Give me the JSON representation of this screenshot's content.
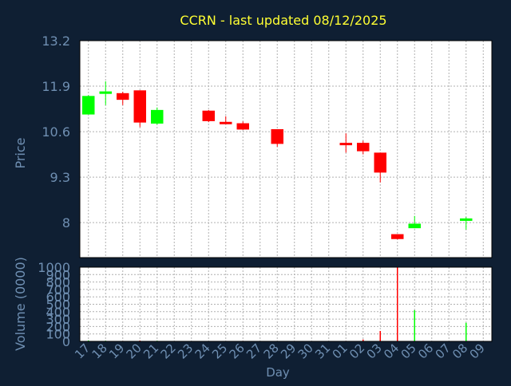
{
  "colors": {
    "background": "#0f1f33",
    "plot_background": "#ffffff",
    "title": "#ffff33",
    "axis_text": "#6f8fb2",
    "up": "#00ff00",
    "down": "#ff0000",
    "grid": "#b0b0b0"
  },
  "chart_data": [
    {
      "type": "candlestick",
      "title": "CCRN - last updated 08/12/2025",
      "xlabel": "",
      "ylabel": "Price",
      "ylim": [
        7.0,
        13.2
      ],
      "yticks": [
        13.2,
        11.9,
        10.6,
        9.3,
        8
      ],
      "ytick_labels": [
        "13.2",
        "11.9",
        "10.6",
        "9.3",
        "8"
      ],
      "grid": true,
      "categories": [
        "17",
        "18",
        "19",
        "20",
        "21",
        "22",
        "23",
        "24",
        "25",
        "26",
        "27",
        "28",
        "29",
        "30",
        "31",
        "01",
        "02",
        "03",
        "04",
        "05",
        "06",
        "07",
        "08",
        "09"
      ],
      "candles": [
        {
          "day": "17",
          "open": 11.09,
          "high": 11.64,
          "low": 11.09,
          "close": 11.62
        },
        {
          "day": "18",
          "open": 11.68,
          "high": 12.04,
          "low": 11.36,
          "close": 11.75
        },
        {
          "day": "19",
          "open": 11.7,
          "high": 11.74,
          "low": 11.36,
          "close": 11.51
        },
        {
          "day": "20",
          "open": 11.78,
          "high": 11.78,
          "low": 10.73,
          "close": 10.86
        },
        {
          "day": "21",
          "open": 10.83,
          "high": 11.29,
          "low": 10.8,
          "close": 11.22
        },
        {
          "day": "24",
          "open": 11.2,
          "high": 11.22,
          "low": 10.87,
          "close": 10.9
        },
        {
          "day": "25",
          "open": 10.88,
          "high": 11.04,
          "low": 10.84,
          "close": 10.86
        },
        {
          "day": "26",
          "open": 10.84,
          "high": 10.89,
          "low": 10.65,
          "close": 10.66
        },
        {
          "day": "28",
          "open": 10.67,
          "high": 10.67,
          "low": 10.17,
          "close": 10.25
        },
        {
          "day": "01",
          "open": 10.28,
          "high": 10.55,
          "low": 10.0,
          "close": 10.22
        },
        {
          "day": "02",
          "open": 10.28,
          "high": 10.34,
          "low": 9.95,
          "close": 10.04
        },
        {
          "day": "03",
          "open": 10.0,
          "high": 10.0,
          "low": 9.15,
          "close": 9.43
        },
        {
          "day": "04",
          "open": 7.67,
          "high": 7.67,
          "low": 7.52,
          "close": 7.53
        },
        {
          "day": "05",
          "open": 7.84,
          "high": 8.19,
          "low": 7.84,
          "close": 7.97
        },
        {
          "day": "08",
          "open": 8.05,
          "high": 8.16,
          "low": 7.8,
          "close": 8.12
        }
      ]
    },
    {
      "type": "bar",
      "title": "",
      "xlabel": "Day",
      "ylabel": "Volume (0000)",
      "ylim": [
        0,
        1000
      ],
      "yticks": [
        0,
        100,
        200,
        300,
        400,
        500,
        600,
        700,
        800,
        900,
        1000
      ],
      "ytick_labels": [
        "0",
        "100",
        "200",
        "300",
        "400",
        "500",
        "600",
        "700",
        "800",
        "900",
        "1000"
      ],
      "grid": true,
      "categories": [
        "17",
        "18",
        "19",
        "20",
        "21",
        "22",
        "23",
        "24",
        "25",
        "26",
        "27",
        "28",
        "29",
        "30",
        "31",
        "01",
        "02",
        "03",
        "04",
        "05",
        "06",
        "07",
        "08",
        "09"
      ],
      "series": [
        {
          "values": [
            12,
            8,
            6,
            10,
            8,
            0,
            0,
            5,
            4,
            6,
            0,
            5,
            0,
            0,
            0,
            6,
            25,
            140,
            1000,
            420,
            0,
            0,
            250,
            0
          ],
          "directions": [
            "up",
            "up",
            "down",
            "down",
            "up",
            "",
            "",
            "down",
            "down",
            "down",
            "",
            "down",
            "",
            "",
            "",
            "down",
            "down",
            "down",
            "down",
            "up",
            "",
            "",
            "up",
            ""
          ]
        }
      ]
    }
  ]
}
